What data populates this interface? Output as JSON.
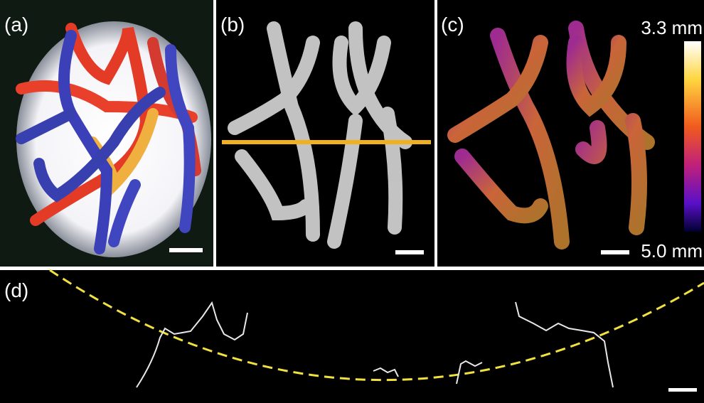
{
  "panels": {
    "a": {
      "label": "(a)"
    },
    "b": {
      "label": "(b)"
    },
    "c": {
      "label": "(c)"
    },
    "d": {
      "label": "(d)"
    }
  },
  "colorbar": {
    "top_label": "3.3 mm",
    "bottom_label": "5.0 mm"
  }
}
